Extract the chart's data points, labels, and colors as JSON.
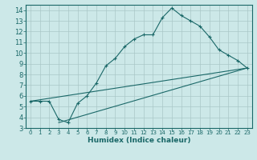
{
  "title": "",
  "xlabel": "Humidex (Indice chaleur)",
  "xlim": [
    -0.5,
    23.5
  ],
  "ylim": [
    3,
    14.5
  ],
  "yticks": [
    3,
    4,
    5,
    6,
    7,
    8,
    9,
    10,
    11,
    12,
    13,
    14
  ],
  "xticks": [
    0,
    1,
    2,
    3,
    4,
    5,
    6,
    7,
    8,
    9,
    10,
    11,
    12,
    13,
    14,
    15,
    16,
    17,
    18,
    19,
    20,
    21,
    22,
    23
  ],
  "bg_color": "#cce8e8",
  "plot_bg_color": "#cce8e8",
  "grid_major_color": "#aac8c8",
  "grid_minor_color": "#bbdada",
  "line_color": "#1a6868",
  "line1_x": [
    0,
    1,
    2,
    3,
    4,
    5,
    6,
    7,
    8,
    9,
    10,
    11,
    12,
    13,
    14,
    15,
    16,
    17,
    18,
    19,
    20,
    21,
    22,
    23
  ],
  "line1_y": [
    5.5,
    5.5,
    5.5,
    3.8,
    3.5,
    5.3,
    6.0,
    7.2,
    8.8,
    9.5,
    10.6,
    11.3,
    11.7,
    11.7,
    13.3,
    14.2,
    13.5,
    13.0,
    12.5,
    11.5,
    10.3,
    9.8,
    9.3,
    8.6
  ],
  "line2_x": [
    0,
    23
  ],
  "line2_y": [
    5.5,
    8.6
  ],
  "line3_x": [
    3,
    23
  ],
  "line3_y": [
    3.5,
    8.6
  ]
}
